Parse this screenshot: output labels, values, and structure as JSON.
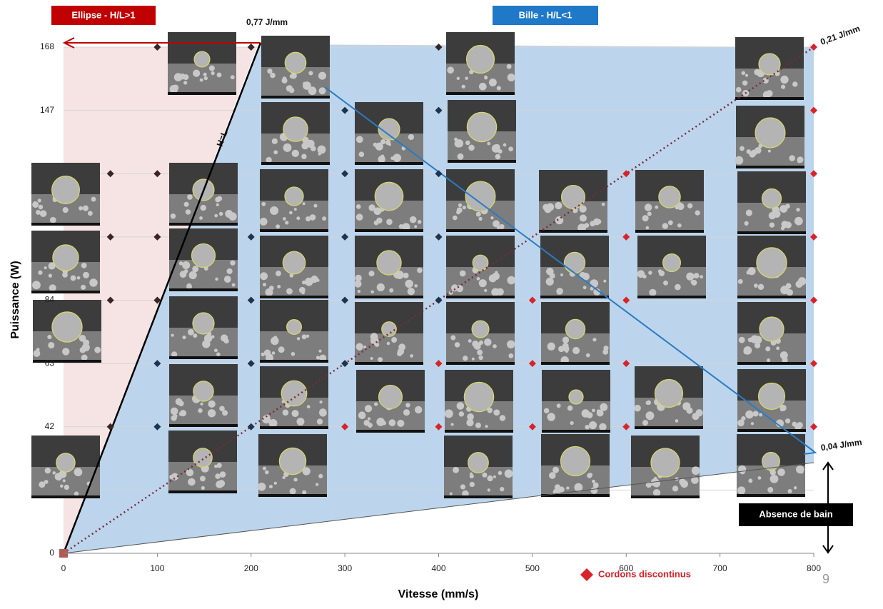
{
  "chart_data": {
    "type": "scatter",
    "x_label": "Vitesse (mm/s)",
    "y_label": "Puissance (W)",
    "xlim": [
      0,
      800
    ],
    "xticks": [
      0,
      100,
      200,
      300,
      400,
      500,
      600,
      700,
      800
    ],
    "ylim": [
      0,
      168
    ],
    "yticks": [
      0,
      {
        "value": 21,
        "label": null
      },
      42,
      63,
      84,
      {
        "value": 105,
        "label": null
      },
      {
        "value": 126,
        "label": null
      },
      147,
      168
    ],
    "grid": true,
    "annotations": {
      "ellipse": "Ellipse  - H/L>1",
      "bille": "Bille  - H/L<1",
      "e_high": "0,77 J/mm",
      "e_mid": "0,21 J/mm",
      "e_low": "0,04 J/mm",
      "hl": "H=L",
      "absence": "Absence de bain"
    },
    "page_number": "9",
    "series": [
      {
        "color": "#3a2424",
        "marker": "diamond",
        "x": [
          100,
          200,
          400,
          50,
          100,
          50,
          100,
          50,
          100,
          50
        ],
        "values": [
          168,
          168,
          168,
          126,
          126,
          105,
          105,
          84,
          84,
          42
        ]
      },
      {
        "color": "#1b3550",
        "marker": "diamond",
        "x": [
          300,
          400,
          300,
          400,
          200,
          300,
          400,
          200,
          300,
          400,
          100,
          200,
          300,
          100,
          200
        ],
        "values": [
          147,
          147,
          126,
          126,
          105,
          105,
          105,
          84,
          84,
          84,
          63,
          63,
          63,
          42,
          42
        ]
      },
      {
        "name": "Cordons discontinus",
        "color": "#d9222a",
        "marker": "diamond",
        "x": [
          800,
          800,
          600,
          800,
          600,
          800,
          500,
          600,
          800,
          400,
          500,
          600,
          800,
          300,
          400,
          500,
          600,
          800
        ],
        "values": [
          168,
          147,
          126,
          126,
          105,
          105,
          84,
          84,
          84,
          63,
          63,
          63,
          63,
          42,
          42,
          42,
          42,
          42
        ]
      },
      {
        "color": "#b05a55",
        "marker": "square",
        "x": [
          0
        ],
        "values": [
          0
        ]
      }
    ]
  }
}
